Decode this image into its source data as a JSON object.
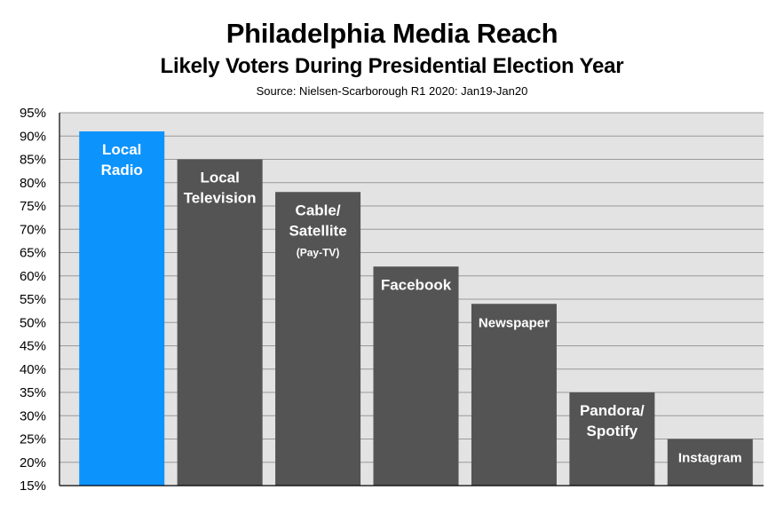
{
  "chart_data": {
    "type": "bar",
    "title": "Philadelphia Media Reach",
    "subtitle": "Likely Voters During Presidential Election Year",
    "source": "Source: Nielsen-Scarborough R1 2020: Jan19-Jan20",
    "xlabel": "",
    "ylabel": "",
    "ylim": [
      15,
      95
    ],
    "yticks": [
      15,
      20,
      25,
      30,
      35,
      40,
      45,
      50,
      55,
      60,
      65,
      70,
      75,
      80,
      85,
      90,
      95
    ],
    "ytick_suffix": "%",
    "grid": true,
    "legend": "none",
    "bars": [
      {
        "label": [
          "Local",
          "Radio"
        ],
        "value": 91,
        "color": "#0d93fc"
      },
      {
        "label": [
          "Local",
          "Television"
        ],
        "value": 85,
        "color": "#545454"
      },
      {
        "label": [
          "Cable/",
          "Satellite",
          "(Pay-TV)"
        ],
        "value": 78,
        "color": "#545454"
      },
      {
        "label": [
          "Facebook"
        ],
        "value": 62,
        "color": "#545454"
      },
      {
        "label": [
          "Newspaper"
        ],
        "value": 54,
        "color": "#545454"
      },
      {
        "label": [
          "Pandora/",
          "Spotify"
        ],
        "value": 35,
        "color": "#545454"
      },
      {
        "label": [
          "Instagram"
        ],
        "value": 25,
        "color": "#545454"
      }
    ],
    "colors": {
      "plot_background": "#e3e3e3",
      "grid": "#9a9a9a",
      "axis": "#000000"
    }
  }
}
